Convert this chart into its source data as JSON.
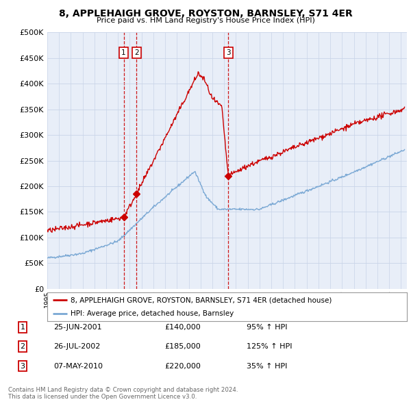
{
  "title": "8, APPLEHAIGH GROVE, ROYSTON, BARNSLEY, S71 4ER",
  "subtitle": "Price paid vs. HM Land Registry's House Price Index (HPI)",
  "ylim": [
    0,
    500000
  ],
  "yticks": [
    0,
    50000,
    100000,
    150000,
    200000,
    250000,
    300000,
    350000,
    400000,
    450000,
    500000
  ],
  "xlim_start": 1995.0,
  "xlim_end": 2025.5,
  "legend_line1": "8, APPLEHAIGH GROVE, ROYSTON, BARNSLEY, S71 4ER (detached house)",
  "legend_line2": "HPI: Average price, detached house, Barnsley",
  "sale_color": "#cc0000",
  "hpi_color": "#7aa8d4",
  "plot_bg": "#e8eef8",
  "transactions": [
    {
      "label": "1",
      "date": 2001.48,
      "price": 140000
    },
    {
      "label": "2",
      "date": 2002.57,
      "price": 185000
    },
    {
      "label": "3",
      "date": 2010.35,
      "price": 220000
    }
  ],
  "table_rows": [
    {
      "num": "1",
      "date": "25-JUN-2001",
      "price": "£140,000",
      "pct": "95% ↑ HPI"
    },
    {
      "num": "2",
      "date": "26-JUL-2002",
      "price": "£185,000",
      "pct": "125% ↑ HPI"
    },
    {
      "num": "3",
      "date": "07-MAY-2010",
      "price": "£220,000",
      "pct": "35% ↑ HPI"
    }
  ],
  "footer": "Contains HM Land Registry data © Crown copyright and database right 2024.\nThis data is licensed under the Open Government Licence v3.0.",
  "background_color": "#ffffff",
  "grid_color": "#c8d4e8"
}
